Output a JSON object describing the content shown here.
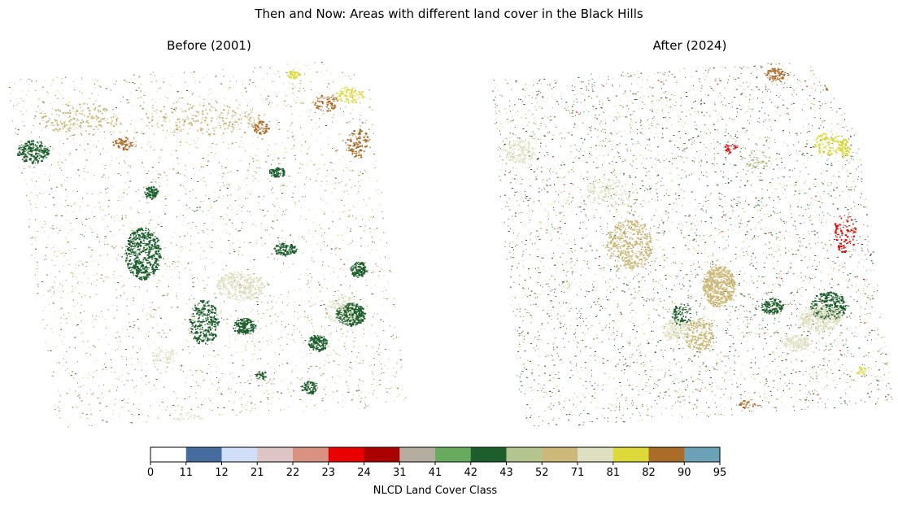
{
  "figure": {
    "title": "Then and Now: Areas with different land cover in the Black Hills",
    "panels": [
      {
        "title": "Before (2001)"
      },
      {
        "title": "After (2024)"
      }
    ]
  },
  "colorbar": {
    "label": "NLCD Land Cover Class",
    "ticks": [
      "0",
      "11",
      "12",
      "21",
      "22",
      "23",
      "24",
      "31",
      "41",
      "42",
      "43",
      "52",
      "71",
      "81",
      "82",
      "90",
      "95"
    ],
    "colors": [
      "#ffffff",
      "#466b9f",
      "#d1def8",
      "#dec5c5",
      "#d99282",
      "#eb0000",
      "#ab0000",
      "#b3ac9f",
      "#68ab5f",
      "#1c5f2c",
      "#b5c58f",
      "#ccb879",
      "#dfdfc2",
      "#dcd939",
      "#ab6c28",
      "#6ca2b8"
    ]
  },
  "chart_data": {
    "type": "heatmap",
    "title": "Then and Now: Areas with different land cover in the Black Hills",
    "subplots": [
      "Before (2001)",
      "After (2024)"
    ],
    "colorbar_label": "NLCD Land Cover Class",
    "class_boundaries": [
      0,
      11,
      12,
      21,
      22,
      23,
      24,
      31,
      41,
      42,
      43,
      52,
      71,
      81,
      82,
      90,
      95
    ],
    "grid": false
  }
}
